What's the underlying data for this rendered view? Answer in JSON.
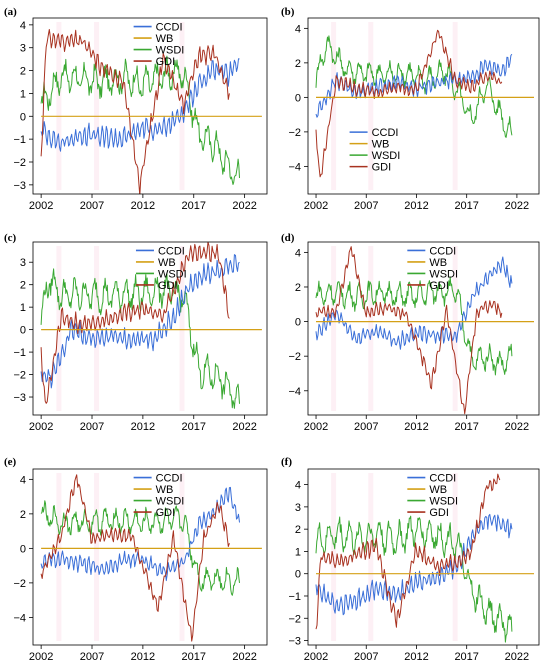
{
  "figure": {
    "series_colors": {
      "CCDI": "#3a6fd8",
      "WB": "#d4a017",
      "WSDI": "#3aa832",
      "GDI": "#a83220"
    }
  },
  "chart_data": [
    {
      "panel": "(a)",
      "type": "line",
      "xticks": [
        2002,
        2007,
        2012,
        2017,
        2022
      ],
      "xlim": [
        2001.2,
        2024.2
      ],
      "yticks": [
        -3,
        -2,
        -1,
        0,
        1,
        2,
        3,
        4
      ],
      "ylim": [
        -3.4,
        4.3
      ],
      "legend": [
        "CCDI",
        "WB",
        "WSDI",
        "GDI"
      ],
      "legend_position": "top-center",
      "series": [
        {
          "name": "CCDI",
          "x": [
            2002,
            2004,
            2006,
            2008,
            2010,
            2012,
            2014,
            2016,
            2017.5,
            2019,
            2020.5,
            2021.5
          ],
          "values": [
            -0.6,
            -1.2,
            -0.8,
            -0.9,
            -1.0,
            -0.5,
            -0.6,
            0.2,
            1.4,
            2.1,
            1.8,
            2.5
          ]
        },
        {
          "name": "WB",
          "x": [
            2002,
            2023.7
          ],
          "values": [
            0,
            0
          ]
        },
        {
          "name": "WSDI",
          "x": [
            2002,
            2004,
            2006,
            2008,
            2010,
            2012,
            2014,
            2016,
            2017.5,
            2019,
            2020.5,
            2021.5
          ],
          "values": [
            0.5,
            1.8,
            1.6,
            1.5,
            1.7,
            1.4,
            1.8,
            1.9,
            -0.8,
            -1.2,
            -2.3,
            -2.7
          ]
        },
        {
          "name": "GDI",
          "x": [
            2002,
            2002.5,
            2004,
            2006,
            2008,
            2010,
            2011.7,
            2014,
            2016,
            2017.5,
            2019,
            2020.5
          ],
          "values": [
            -1.8,
            3.4,
            3.3,
            3.3,
            2.1,
            1.6,
            -3.0,
            2.6,
            0.5,
            2.6,
            2.8,
            1.0
          ]
        }
      ]
    },
    {
      "panel": "(b)",
      "type": "line",
      "xticks": [
        2002,
        2007,
        2012,
        2017,
        2022
      ],
      "xlim": [
        2001.2,
        2024.2
      ],
      "yticks": [
        -4,
        -2,
        0,
        2,
        4
      ],
      "ylim": [
        -5.6,
        4.6
      ],
      "legend": [
        "CCDI",
        "WB",
        "WSDI",
        "GDI"
      ],
      "legend_position": "bottom-left",
      "series": [
        {
          "name": "CCDI",
          "x": [
            2002,
            2004,
            2006,
            2008,
            2010,
            2012,
            2014,
            2016,
            2017.5,
            2019,
            2020.5,
            2021.5
          ],
          "values": [
            -1.0,
            1.0,
            0.3,
            0.6,
            0.9,
            0.5,
            0.9,
            1.0,
            1.2,
            1.9,
            1.4,
            2.5
          ]
        },
        {
          "name": "WB",
          "x": [
            2002,
            2023.7
          ],
          "values": [
            0,
            0
          ]
        },
        {
          "name": "WSDI",
          "x": [
            2002,
            2003,
            2005,
            2007,
            2009,
            2011,
            2013,
            2015,
            2017.5,
            2019,
            2020.5,
            2021.5
          ],
          "values": [
            1.0,
            3.1,
            1.6,
            1.4,
            1.3,
            1.4,
            1.0,
            1.5,
            -1.3,
            0.8,
            -1.2,
            -2.2
          ]
        },
        {
          "name": "GDI",
          "x": [
            2002,
            2002.4,
            2004,
            2006,
            2008,
            2010,
            2012,
            2014.2,
            2016,
            2017.5,
            2019,
            2020.5
          ],
          "values": [
            -2.0,
            -4.8,
            1.0,
            0.5,
            0.3,
            0.6,
            0.4,
            3.9,
            0.8,
            0.6,
            1.3,
            0.9
          ]
        }
      ]
    },
    {
      "panel": "(c)",
      "type": "line",
      "xticks": [
        2002,
        2007,
        2012,
        2017,
        2022
      ],
      "xlim": [
        2001.2,
        2024.2
      ],
      "yticks": [
        -3,
        -2,
        -1,
        0,
        1,
        2,
        3
      ],
      "ylim": [
        -3.8,
        3.9
      ],
      "legend": [
        "CCDI",
        "WB",
        "WSDI",
        "GDI"
      ],
      "legend_position": "top-right",
      "series": [
        {
          "name": "CCDI",
          "x": [
            2002,
            2003,
            2005,
            2007,
            2009,
            2011,
            2013,
            2015,
            2016.5,
            2018,
            2019.5,
            2021.5
          ],
          "values": [
            -2.0,
            -2.2,
            0.0,
            -0.4,
            -0.3,
            -0.5,
            -0.4,
            0.5,
            1.9,
            2.4,
            2.6,
            3.0
          ]
        },
        {
          "name": "WB",
          "x": [
            2002,
            2023.7
          ],
          "values": [
            0,
            0
          ]
        },
        {
          "name": "WSDI",
          "x": [
            2002,
            2002.8,
            2004,
            2006,
            2008,
            2010,
            2012,
            2014,
            2016,
            2017.5,
            2019.5,
            2021.5
          ],
          "values": [
            0.5,
            2.3,
            1.5,
            1.6,
            1.5,
            1.6,
            1.6,
            1.8,
            1.5,
            -1.8,
            -2.1,
            -3.3
          ]
        },
        {
          "name": "GDI",
          "x": [
            2002,
            2002.4,
            2004,
            2006,
            2008,
            2010,
            2012,
            2014,
            2016.5,
            2018,
            2019.5,
            2020.5
          ],
          "values": [
            -1.0,
            -3.5,
            0.6,
            0.2,
            0.4,
            0.7,
            0.9,
            0.6,
            3.4,
            3.5,
            3.3,
            0.5
          ]
        }
      ]
    },
    {
      "panel": "(d)",
      "type": "line",
      "xticks": [
        2002,
        2007,
        2012,
        2017,
        2022
      ],
      "xlim": [
        2001.2,
        2024.2
      ],
      "yticks": [
        -4,
        -2,
        0,
        2,
        4
      ],
      "ylim": [
        -5.4,
        4.6
      ],
      "legend": [
        "CCDI",
        "WB",
        "WSDI",
        "GDI"
      ],
      "legend_position": "top-center",
      "series": [
        {
          "name": "CCDI",
          "x": [
            2002,
            2004,
            2006,
            2008,
            2010,
            2012,
            2014,
            2016,
            2017.5,
            2019,
            2020.5,
            2021.5
          ],
          "values": [
            -0.8,
            0.5,
            -1.0,
            -0.5,
            -1.2,
            -0.6,
            -0.8,
            -0.8,
            1.4,
            2.5,
            3.3,
            2.2
          ]
        },
        {
          "name": "WB",
          "x": [
            2002,
            2023.7
          ],
          "values": [
            0,
            0
          ]
        },
        {
          "name": "WSDI",
          "x": [
            2002,
            2004,
            2006,
            2008,
            2010,
            2012,
            2014,
            2016,
            2017.5,
            2019,
            2020.5,
            2021.5
          ],
          "values": [
            1.5,
            1.7,
            1.4,
            1.7,
            1.5,
            1.5,
            1.8,
            1.7,
            -2.3,
            -2.0,
            -2.5,
            -2.0
          ]
        },
        {
          "name": "GDI",
          "x": [
            2002,
            2004,
            2005.5,
            2007,
            2009,
            2011,
            2013.5,
            2015,
            2016.8,
            2018,
            2019.5,
            2020.5
          ],
          "values": [
            0.6,
            0.5,
            4.3,
            0.5,
            0.8,
            0.4,
            -3.6,
            0.6,
            -5.3,
            0.6,
            1.0,
            0.5
          ]
        }
      ]
    },
    {
      "panel": "(e)",
      "type": "line",
      "xticks": [
        2002,
        2007,
        2012,
        2017,
        2022
      ],
      "xlim": [
        2001.2,
        2024.2
      ],
      "yticks": [
        -4,
        -2,
        0,
        2,
        4
      ],
      "ylim": [
        -5.6,
        4.6
      ],
      "legend": [
        "CCDI",
        "WB",
        "WSDI",
        "GDI"
      ],
      "legend_position": "top-center",
      "series": [
        {
          "name": "CCDI",
          "x": [
            2002,
            2004,
            2006,
            2008,
            2010,
            2012,
            2014,
            2016,
            2017.5,
            2019,
            2020.5,
            2021.5
          ],
          "values": [
            -0.8,
            -0.6,
            -0.9,
            -1.2,
            -0.7,
            -0.6,
            -1.4,
            -0.8,
            1.4,
            2.1,
            3.3,
            1.5
          ]
        },
        {
          "name": "WB",
          "x": [
            2002,
            2023.7
          ],
          "values": [
            0,
            0
          ]
        },
        {
          "name": "WSDI",
          "x": [
            2002,
            2004,
            2006,
            2008,
            2010,
            2012,
            2014,
            2016,
            2017.5,
            2019,
            2020.5,
            2021.5
          ],
          "values": [
            2.0,
            1.5,
            1.5,
            1.6,
            1.6,
            1.5,
            1.6,
            1.7,
            -1.8,
            -1.7,
            -1.9,
            -2.0
          ]
        },
        {
          "name": "GDI",
          "x": [
            2002,
            2004,
            2005.5,
            2007,
            2009,
            2011,
            2013.5,
            2015,
            2016.8,
            2018,
            2019.5,
            2020.5
          ],
          "values": [
            -1.5,
            0.8,
            4.2,
            0.5,
            0.8,
            0.6,
            -3.5,
            0.7,
            -5.3,
            0.6,
            2.5,
            0.3
          ]
        }
      ]
    },
    {
      "panel": "(f)",
      "type": "line",
      "xticks": [
        2002,
        2007,
        2012,
        2017,
        2022
      ],
      "xlim": [
        2001.2,
        2024.2
      ],
      "yticks": [
        -3,
        -2,
        -1,
        0,
        1,
        2,
        3,
        4
      ],
      "ylim": [
        -3.2,
        4.7
      ],
      "legend": [
        "CCDI",
        "WB",
        "WSDI",
        "GDI"
      ],
      "legend_position": "top-center",
      "series": [
        {
          "name": "CCDI",
          "x": [
            2002,
            2004,
            2006,
            2008,
            2010,
            2012,
            2014,
            2016,
            2017.5,
            2019,
            2020.5,
            2021.5
          ],
          "values": [
            -0.5,
            -1.5,
            -1.2,
            -0.6,
            -1.0,
            -0.4,
            -0.2,
            0.3,
            1.6,
            2.5,
            2.2,
            2.0
          ]
        },
        {
          "name": "WB",
          "x": [
            2002,
            2023.7
          ],
          "values": [
            0,
            0
          ]
        },
        {
          "name": "WSDI",
          "x": [
            2002,
            2004,
            2006,
            2008,
            2010,
            2012,
            2014,
            2016,
            2017.5,
            2019,
            2020.5,
            2021.5
          ],
          "values": [
            1.4,
            1.8,
            1.6,
            1.8,
            1.5,
            2.0,
            1.7,
            1.4,
            -0.8,
            -1.7,
            -2.1,
            -2.6
          ]
        },
        {
          "name": "GDI",
          "x": [
            2002,
            2002.5,
            2004,
            2006,
            2008,
            2010,
            2012,
            2014,
            2016,
            2017.5,
            2019,
            2020.3
          ],
          "values": [
            -2.6,
            0.8,
            0.5,
            0.8,
            1.2,
            -2.2,
            1.1,
            0.3,
            0.5,
            1.0,
            3.9,
            4.2
          ]
        }
      ]
    }
  ]
}
